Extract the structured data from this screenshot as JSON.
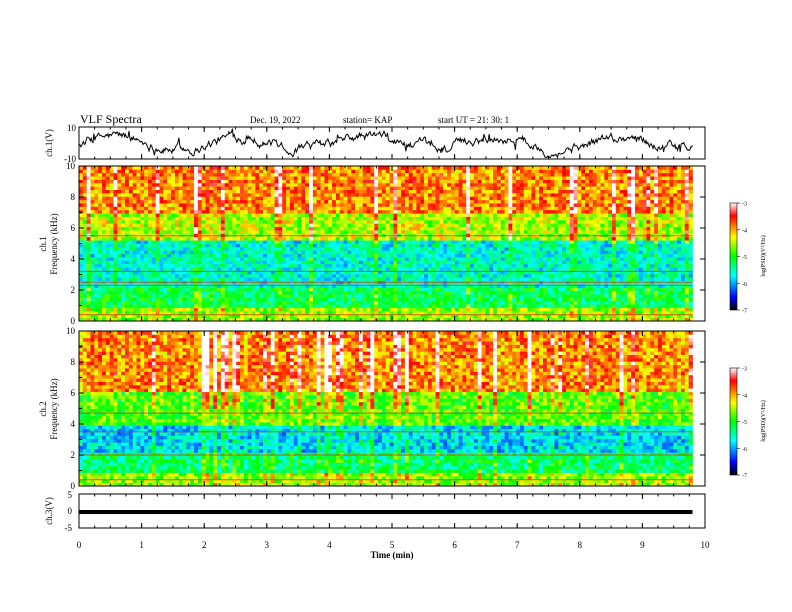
{
  "header": {
    "title": "VLF Spectra",
    "date": "Dec. 19, 2022",
    "station": "station= KAP",
    "start": "start UT =  21: 30: 1"
  },
  "chart_data": [
    {
      "type": "line",
      "name": "ch1-voltage",
      "ylabel": "ch.1(V)",
      "ylim": [
        -10,
        10
      ],
      "yticks": [
        "10",
        "-10"
      ],
      "xlim": [
        0,
        10
      ],
      "x_extent": [
        0,
        9.8
      ],
      "series_style": "noisy waveform fluctuating about 0 V, mostly between -5 and +5 V"
    },
    {
      "type": "heatmap",
      "name": "ch1-spectrogram",
      "ylabel_line1": "ch.1",
      "ylabel_line2": "Frequency  (kHz)",
      "ylim": [
        0,
        10
      ],
      "yticks": [
        "0",
        "2",
        "4",
        "6",
        "8",
        "10"
      ],
      "xlim": [
        0,
        10
      ],
      "x_extent": [
        0,
        9.8
      ],
      "bands": [
        {
          "f_range": [
            0,
            0.8
          ],
          "level": -4.6
        },
        {
          "f_range": [
            0.8,
            2.2
          ],
          "level": -5.2
        },
        {
          "f_range": [
            2.2,
            5.2
          ],
          "level": -5.6
        },
        {
          "f_range": [
            5.2,
            7.0
          ],
          "level": -4.5
        },
        {
          "f_range": [
            7.0,
            10
          ],
          "level": -3.9
        }
      ],
      "lines_khz": [
        0.4,
        2.3,
        2.5,
        3.2,
        5.5
      ],
      "colorbar": {
        "label": "log(PSD)(V²/Hz)",
        "range": [
          -7,
          -3
        ],
        "ticks": [
          "-3",
          "-4",
          "-5",
          "-6",
          "-7"
        ],
        "colors": [
          "#ffffff",
          "#ff0000",
          "#ffff00",
          "#00ff00",
          "#00ffff",
          "#0000ff",
          "#000000"
        ]
      }
    },
    {
      "type": "heatmap",
      "name": "ch2-spectrogram",
      "ylabel_line1": "ch.2",
      "ylabel_line2": "Frequency  (kHz)",
      "ylim": [
        0,
        10
      ],
      "yticks": [
        "0",
        "2",
        "4",
        "6",
        "8",
        "10"
      ],
      "xlim": [
        0,
        10
      ],
      "x_extent": [
        0,
        9.8
      ],
      "bands": [
        {
          "f_range": [
            0,
            0.8
          ],
          "level": -4.6
        },
        {
          "f_range": [
            0.8,
            2.2
          ],
          "level": -5.3
        },
        {
          "f_range": [
            2.2,
            4.0
          ],
          "level": -5.8
        },
        {
          "f_range": [
            4.0,
            6.0
          ],
          "level": -4.8
        },
        {
          "f_range": [
            6.0,
            10
          ],
          "level": -3.9
        }
      ],
      "lines_khz": [
        0.4,
        2.0,
        3.5,
        4.7
      ],
      "colorbar": {
        "label": "log(PSD)(V²/Hz)",
        "range": [
          -7,
          -3
        ],
        "ticks": [
          "-3",
          "-4",
          "-5",
          "-6",
          "-7"
        ],
        "colors": [
          "#ffffff",
          "#ff0000",
          "#ffff00",
          "#00ff00",
          "#00ffff",
          "#0000ff",
          "#000000"
        ]
      }
    },
    {
      "type": "line",
      "name": "ch3-voltage",
      "ylabel": "ch.3(V)",
      "ylim": [
        -5,
        5
      ],
      "yticks": [
        "5",
        "0",
        "-5"
      ],
      "xlim": [
        0,
        10
      ],
      "x_extent": [
        0,
        9.8
      ],
      "series_style": "flat thick trace near -0.3 V"
    }
  ],
  "xaxis": {
    "label": "Time  (min)",
    "ticks": [
      "0",
      "1",
      "2",
      "3",
      "4",
      "5",
      "6",
      "7",
      "8",
      "9",
      "10"
    ]
  }
}
